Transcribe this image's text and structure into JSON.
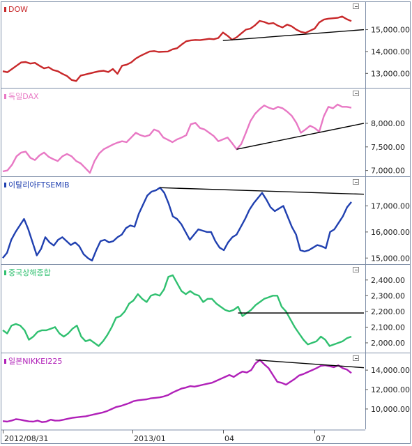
{
  "chart_data": {
    "type": "line",
    "x_ticks": [
      "2012/08/31",
      "2013/01",
      "04",
      "07"
    ],
    "panels": [
      {
        "name": "DOW",
        "color": "#c8282a",
        "ylim": [
          12500,
          16100
        ],
        "yticks": [
          "15,000.00",
          "14,000.00",
          "13,000.00"
        ],
        "ytick_values": [
          15000,
          14000,
          13000
        ],
        "values": [
          13100,
          13050,
          13200,
          13350,
          13500,
          13520,
          13450,
          13480,
          13350,
          13230,
          13280,
          13150,
          13100,
          12980,
          12880,
          12700,
          12650,
          12900,
          12950,
          13000,
          13050,
          13100,
          13120,
          13060,
          13200,
          12980,
          13350,
          13400,
          13500,
          13680,
          13800,
          13900,
          14000,
          14020,
          13980,
          13990,
          14000,
          14100,
          14150,
          14320,
          14470,
          14510,
          14530,
          14520,
          14550,
          14580,
          14560,
          14620,
          14870,
          14720,
          14540,
          14650,
          14830,
          15000,
          15050,
          15200,
          15400,
          15350,
          15270,
          15300,
          15180,
          15100,
          15230,
          15150,
          15000,
          14900,
          14850,
          14950,
          15050,
          15330,
          15460,
          15500,
          15520,
          15540,
          15600,
          15480,
          15390
        ],
        "trendline": {
          "from": [
            48,
            14500
          ],
          "to": [
            90,
            15000
          ]
        }
      },
      {
        "name": "독일DAX",
        "color": "#e878c4",
        "ylim": [
          6950,
          8650
        ],
        "yticks": [
          "8,000.00",
          "7,500.00",
          "7,000.00"
        ],
        "ytick_values": [
          8000,
          7500,
          7000
        ],
        "values": [
          6980,
          7000,
          7120,
          7300,
          7380,
          7400,
          7270,
          7220,
          7320,
          7380,
          7290,
          7240,
          7200,
          7300,
          7350,
          7300,
          7200,
          7150,
          7050,
          6950,
          7200,
          7360,
          7450,
          7500,
          7550,
          7590,
          7620,
          7600,
          7700,
          7800,
          7750,
          7720,
          7750,
          7870,
          7830,
          7700,
          7650,
          7600,
          7660,
          7700,
          7750,
          7980,
          8010,
          7900,
          7870,
          7800,
          7730,
          7620,
          7660,
          7700,
          7580,
          7450,
          7560,
          7800,
          8050,
          8200,
          8300,
          8380,
          8330,
          8300,
          8350,
          8320,
          8250,
          8160,
          8010,
          7800,
          7870,
          7950,
          7900,
          7820,
          8150,
          8350,
          8320,
          8400,
          8350,
          8350,
          8330
        ],
        "trendline": {
          "from": [
            51,
            7450
          ],
          "to": [
            90,
            8000
          ]
        }
      },
      {
        "name": "이탈리아FTSEMIB",
        "color": "#2040b0",
        "ylim": [
          14900,
          17950
        ],
        "yticks": [
          "17,000.00",
          "16,000.00",
          "15,000.00"
        ],
        "ytick_values": [
          17000,
          16000,
          15000
        ],
        "values": [
          15000,
          15200,
          15700,
          16000,
          16250,
          16500,
          16100,
          15600,
          15100,
          15350,
          15800,
          15600,
          15480,
          15700,
          15800,
          15650,
          15500,
          15600,
          15450,
          15150,
          15000,
          14900,
          15300,
          15650,
          15700,
          15600,
          15650,
          15800,
          15900,
          16150,
          16250,
          16200,
          16700,
          17050,
          17400,
          17550,
          17600,
          17700,
          17500,
          17100,
          16600,
          16500,
          16300,
          16000,
          15700,
          15900,
          16100,
          16050,
          16000,
          16000,
          15650,
          15400,
          15300,
          15600,
          15800,
          15900,
          16200,
          16500,
          16850,
          17100,
          17300,
          17500,
          17250,
          16950,
          16800,
          16900,
          17000,
          16600,
          16200,
          15900,
          15300,
          15250,
          15300,
          15400,
          15500,
          15450,
          15380,
          16000,
          16100,
          16350,
          16600,
          16950,
          17150
        ],
        "trendline": {
          "from": [
            37,
            17700
          ],
          "to": [
            90,
            17450
          ]
        }
      },
      {
        "name": "중국상해종합",
        "color": "#30c070",
        "ylim": [
          1960,
          2470
        ],
        "yticks": [
          "2,400.00",
          "2,300.00",
          "2,200.00",
          "2,100.00",
          "2,000.00"
        ],
        "ytick_values": [
          2400,
          2300,
          2200,
          2100,
          2000
        ],
        "values": [
          2080,
          2060,
          2110,
          2120,
          2110,
          2080,
          2020,
          2040,
          2070,
          2080,
          2080,
          2090,
          2100,
          2060,
          2040,
          2060,
          2090,
          2110,
          2040,
          2010,
          2020,
          2000,
          1980,
          2010,
          2050,
          2100,
          2160,
          2170,
          2200,
          2250,
          2270,
          2310,
          2280,
          2260,
          2300,
          2310,
          2300,
          2340,
          2420,
          2430,
          2380,
          2330,
          2310,
          2330,
          2310,
          2300,
          2260,
          2280,
          2280,
          2250,
          2230,
          2210,
          2200,
          2210,
          2230,
          2170,
          2190,
          2210,
          2240,
          2260,
          2280,
          2290,
          2300,
          2300,
          2230,
          2200,
          2150,
          2100,
          2060,
          2020,
          1990,
          2000,
          2010,
          2040,
          2020,
          1980,
          1990,
          2000,
          2010,
          2030,
          2040
        ],
        "trendline": {
          "from": [
            54,
            2190
          ],
          "to": [
            90,
            2190
          ]
        }
      },
      {
        "name": "일본NIKKEI225",
        "color": "#b020b8",
        "ylim": [
          8200,
          15300
        ],
        "yticks": [
          "14,000.00",
          "12,000.00",
          "10,000.00"
        ],
        "ytick_values": [
          14000,
          12000,
          10000
        ],
        "values": [
          8750,
          8700,
          8800,
          8950,
          8900,
          8800,
          8720,
          8700,
          8800,
          8650,
          8700,
          8900,
          8800,
          8820,
          8900,
          9000,
          9100,
          9150,
          9200,
          9250,
          9350,
          9450,
          9550,
          9650,
          9800,
          10000,
          10200,
          10300,
          10450,
          10600,
          10800,
          10900,
          10950,
          11000,
          11100,
          11150,
          11200,
          11300,
          11450,
          11700,
          11900,
          12100,
          12200,
          12350,
          12300,
          12400,
          12500,
          12600,
          12700,
          12900,
          13100,
          13300,
          13500,
          13300,
          13600,
          13850,
          13750,
          14000,
          14700,
          15050,
          14600,
          14200,
          13500,
          12800,
          12700,
          12500,
          12800,
          13100,
          13450,
          13600,
          13800,
          14000,
          14200,
          14450,
          14500,
          14400,
          14300,
          14500,
          14200,
          14050,
          13700
        ],
        "trendline": {
          "from": [
            58,
            15050
          ],
          "to": [
            90,
            14250
          ]
        }
      }
    ]
  }
}
